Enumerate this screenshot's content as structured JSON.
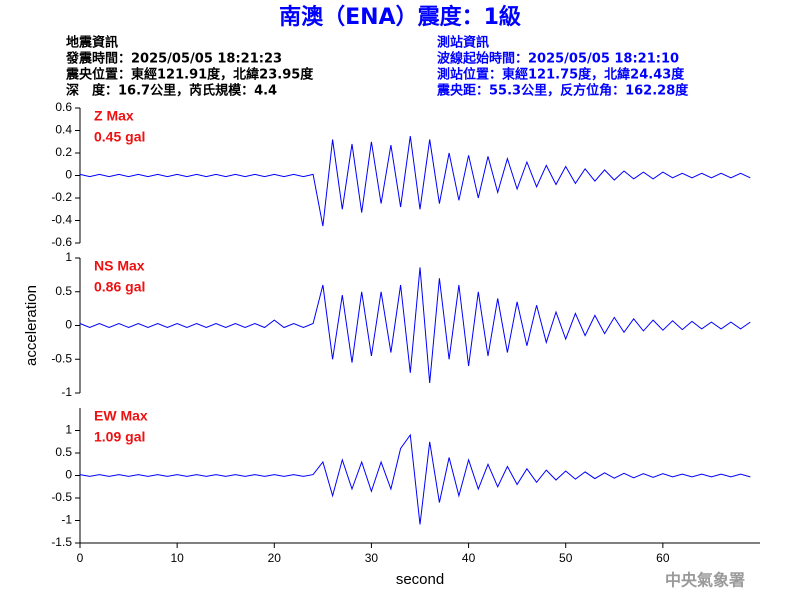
{
  "header": {
    "title": "南澳（ENA）震度：1級",
    "left": [
      "地震資訊",
      "發震時間：2025/05/05 18:21:23",
      "震央位置：東經121.91度，北緯23.95度",
      "深　度：16.7公里，芮氏規模：4.4"
    ],
    "right": [
      "測站資訊",
      "波線起始時間：2025/05/05 18:21:10",
      "測站位置：東經121.75度，北緯24.43度",
      "震央距：55.3公里，反方位角：162.28度"
    ],
    "footer": "中央氣象署"
  },
  "chart_data": [
    {
      "type": "line",
      "annotation": [
        "Z Max",
        "0.45 gal"
      ],
      "color": "#0000ff",
      "xlim": [
        0,
        70
      ],
      "ylim": [
        -0.6,
        0.6
      ],
      "yticks": [
        0.6,
        0.4,
        0.2,
        0,
        -0.2,
        -0.4,
        -0.6
      ],
      "x": [
        0,
        1,
        2,
        3,
        4,
        5,
        6,
        7,
        8,
        9,
        10,
        11,
        12,
        13,
        14,
        15,
        16,
        17,
        18,
        19,
        20,
        21,
        22,
        23,
        24,
        25,
        26,
        27,
        28,
        29,
        30,
        31,
        32,
        33,
        34,
        35,
        36,
        37,
        38,
        39,
        40,
        41,
        42,
        43,
        44,
        45,
        46,
        47,
        48,
        49,
        50,
        51,
        52,
        53,
        54,
        55,
        56,
        57,
        58,
        59,
        60,
        61,
        62,
        63,
        64,
        65,
        66,
        67,
        68,
        69
      ],
      "values": [
        0.01,
        -0.01,
        0.01,
        -0.01,
        0.01,
        -0.01,
        0.01,
        -0.01,
        0.01,
        -0.01,
        0.01,
        -0.01,
        0.01,
        -0.01,
        0.01,
        -0.01,
        0.01,
        -0.01,
        0.01,
        -0.01,
        0.01,
        -0.01,
        0.01,
        -0.01,
        0.01,
        -0.45,
        0.32,
        -0.3,
        0.28,
        -0.33,
        0.3,
        -0.25,
        0.27,
        -0.28,
        0.35,
        -0.3,
        0.32,
        -0.25,
        0.2,
        -0.22,
        0.18,
        -0.2,
        0.17,
        -0.15,
        0.15,
        -0.12,
        0.12,
        -0.1,
        0.09,
        -0.08,
        0.08,
        -0.07,
        0.06,
        -0.05,
        0.05,
        -0.04,
        0.04,
        -0.03,
        0.03,
        -0.03,
        0.03,
        -0.02,
        0.02,
        -0.02,
        0.02,
        -0.02,
        0.02,
        -0.02,
        0.02,
        -0.02
      ]
    },
    {
      "type": "line",
      "annotation": [
        "NS Max",
        "0.86 gal"
      ],
      "color": "#0000ff",
      "ylabel": "acceleration",
      "xlim": [
        0,
        70
      ],
      "ylim": [
        -1,
        1
      ],
      "yticks": [
        1,
        0.5,
        0,
        -0.5,
        -1
      ],
      "x": [
        0,
        1,
        2,
        3,
        4,
        5,
        6,
        7,
        8,
        9,
        10,
        11,
        12,
        13,
        14,
        15,
        16,
        17,
        18,
        19,
        20,
        21,
        22,
        23,
        24,
        25,
        26,
        27,
        28,
        29,
        30,
        31,
        32,
        33,
        34,
        35,
        36,
        37,
        38,
        39,
        40,
        41,
        42,
        43,
        44,
        45,
        46,
        47,
        48,
        49,
        50,
        51,
        52,
        53,
        54,
        55,
        56,
        57,
        58,
        59,
        60,
        61,
        62,
        63,
        64,
        65,
        66,
        67,
        68,
        69
      ],
      "values": [
        0.03,
        -0.03,
        0.03,
        -0.03,
        0.03,
        -0.03,
        0.03,
        -0.03,
        0.03,
        -0.03,
        0.03,
        -0.03,
        0.03,
        -0.03,
        0.03,
        -0.03,
        0.03,
        -0.03,
        0.03,
        -0.03,
        0.08,
        -0.03,
        0.03,
        -0.03,
        0.03,
        0.6,
        -0.5,
        0.45,
        -0.55,
        0.5,
        -0.45,
        0.5,
        -0.4,
        0.6,
        -0.7,
        0.86,
        -0.85,
        0.7,
        -0.5,
        0.6,
        -0.6,
        0.5,
        -0.45,
        0.4,
        -0.4,
        0.35,
        -0.3,
        0.3,
        -0.25,
        0.2,
        -0.2,
        0.18,
        -0.15,
        0.15,
        -0.12,
        0.12,
        -0.1,
        0.1,
        -0.08,
        0.08,
        -0.07,
        0.07,
        -0.06,
        0.06,
        -0.05,
        0.05,
        -0.05,
        0.05,
        -0.05,
        0.05
      ]
    },
    {
      "type": "line",
      "annotation": [
        "EW Max",
        "1.09 gal"
      ],
      "color": "#0000ff",
      "xlabel": "second",
      "xlim": [
        0,
        70
      ],
      "xticks": [
        0,
        10,
        20,
        30,
        40,
        50,
        60
      ],
      "ylim": [
        -1.5,
        1.5
      ],
      "yticks": [
        1,
        0.5,
        0,
        -0.5,
        -1,
        -1.5
      ],
      "x": [
        0,
        1,
        2,
        3,
        4,
        5,
        6,
        7,
        8,
        9,
        10,
        11,
        12,
        13,
        14,
        15,
        16,
        17,
        18,
        19,
        20,
        21,
        22,
        23,
        24,
        25,
        26,
        27,
        28,
        29,
        30,
        31,
        32,
        33,
        34,
        35,
        36,
        37,
        38,
        39,
        40,
        41,
        42,
        43,
        44,
        45,
        46,
        47,
        48,
        49,
        50,
        51,
        52,
        53,
        54,
        55,
        56,
        57,
        58,
        59,
        60,
        61,
        62,
        63,
        64,
        65,
        66,
        67,
        68,
        69
      ],
      "values": [
        0.02,
        -0.02,
        0.02,
        -0.02,
        0.02,
        -0.02,
        0.02,
        -0.02,
        0.02,
        -0.02,
        0.02,
        -0.02,
        0.02,
        -0.02,
        0.02,
        -0.02,
        0.02,
        -0.02,
        0.02,
        -0.02,
        0.02,
        -0.02,
        0.02,
        -0.02,
        0.02,
        0.3,
        -0.45,
        0.35,
        -0.3,
        0.3,
        -0.35,
        0.3,
        -0.3,
        0.6,
        0.9,
        -1.09,
        0.75,
        -0.6,
        0.4,
        -0.45,
        0.35,
        -0.3,
        0.25,
        -0.25,
        0.2,
        -0.2,
        0.15,
        -0.15,
        0.12,
        -0.1,
        0.1,
        -0.08,
        0.08,
        -0.07,
        0.06,
        -0.06,
        0.05,
        -0.05,
        0.04,
        -0.04,
        0.04,
        -0.03,
        0.03,
        -0.03,
        0.03,
        -0.03,
        0.03,
        -0.03,
        0.03,
        -0.03
      ]
    }
  ]
}
